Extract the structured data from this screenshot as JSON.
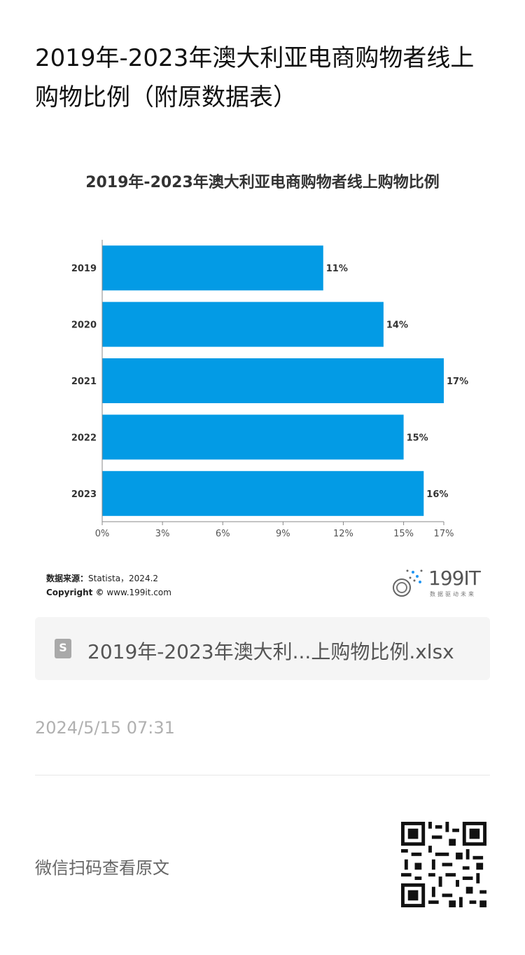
{
  "page": {
    "title": "2019年-2023年澳大利亚电商购物者线上购物比例（附原数据表）",
    "source_label": "数据来源：",
    "source_value": "Statista，2024.2",
    "copyright_label": "Copyright ©",
    "copyright_value": "www.199it.com",
    "logo_text": "199IT",
    "logo_sub": "数据驱动未来",
    "file_name": "2019年-2023年澳大利...上购物比例.xlsx",
    "timestamp": "2024/5/15 07:31",
    "scan_text": "微信扫码查看原文"
  },
  "colors": {
    "bar": "#039be5",
    "axis": "#888888",
    "text": "#333333"
  },
  "icons": {
    "file": "spreadsheet-file-icon",
    "qr": "qr-code-icon",
    "logo": "199it-logo-icon"
  },
  "chart_data": {
    "type": "bar",
    "orientation": "horizontal",
    "title": "2019年-2023年澳大利亚电商购物者线上购物比例",
    "categories": [
      "2019",
      "2020",
      "2021",
      "2022",
      "2023"
    ],
    "values": [
      11,
      14,
      17,
      15,
      16
    ],
    "value_labels": [
      "11%",
      "14%",
      "17%",
      "15%",
      "16%"
    ],
    "xticks": [
      0,
      3,
      6,
      9,
      12,
      15,
      17
    ],
    "xtick_labels": [
      "0%",
      "3%",
      "6%",
      "9%",
      "12%",
      "15%",
      "17%"
    ],
    "xlim": [
      0,
      17
    ],
    "xlabel": "",
    "ylabel": "",
    "grid": false,
    "legend": "none"
  }
}
